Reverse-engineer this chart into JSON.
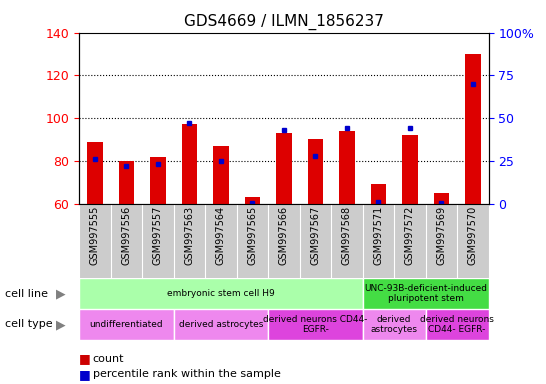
{
  "title": "GDS4669 / ILMN_1856237",
  "samples": [
    "GSM997555",
    "GSM997556",
    "GSM997557",
    "GSM997563",
    "GSM997564",
    "GSM997565",
    "GSM997566",
    "GSM997567",
    "GSM997568",
    "GSM997571",
    "GSM997572",
    "GSM997569",
    "GSM997570"
  ],
  "counts": [
    89,
    80,
    82,
    97,
    87,
    63,
    93,
    90,
    94,
    69,
    92,
    65,
    130
  ],
  "percentile_ranks": [
    26,
    22,
    23,
    47,
    25,
    0.5,
    43,
    28,
    44,
    1,
    44,
    0.5,
    70
  ],
  "ylim_left": [
    60,
    140
  ],
  "ylim_right": [
    0,
    100
  ],
  "left_yticks": [
    60,
    80,
    100,
    120,
    140
  ],
  "right_yticks": [
    0,
    25,
    50,
    75,
    100
  ],
  "bar_color": "#dd0000",
  "percentile_color": "#0000cc",
  "bar_width": 0.5,
  "cell_line_groups": [
    {
      "label": "embryonic stem cell H9",
      "start": 0,
      "end": 9,
      "color": "#aaffaa"
    },
    {
      "label": "UNC-93B-deficient-induced\npluripotent stem",
      "start": 9,
      "end": 13,
      "color": "#44dd44"
    }
  ],
  "cell_type_groups": [
    {
      "label": "undifferentiated",
      "start": 0,
      "end": 3,
      "color": "#ee88ee"
    },
    {
      "label": "derived astrocytes",
      "start": 3,
      "end": 6,
      "color": "#ee88ee"
    },
    {
      "label": "derived neurons CD44-\nEGFR-",
      "start": 6,
      "end": 9,
      "color": "#dd44dd"
    },
    {
      "label": "derived\nastrocytes",
      "start": 9,
      "end": 11,
      "color": "#ee88ee"
    },
    {
      "label": "derived neurons\nCD44- EGFR-",
      "start": 11,
      "end": 13,
      "color": "#dd44dd"
    }
  ],
  "xtick_bg_color": "#cccccc",
  "legend_count_color": "#cc0000",
  "legend_percentile_color": "#0000cc"
}
